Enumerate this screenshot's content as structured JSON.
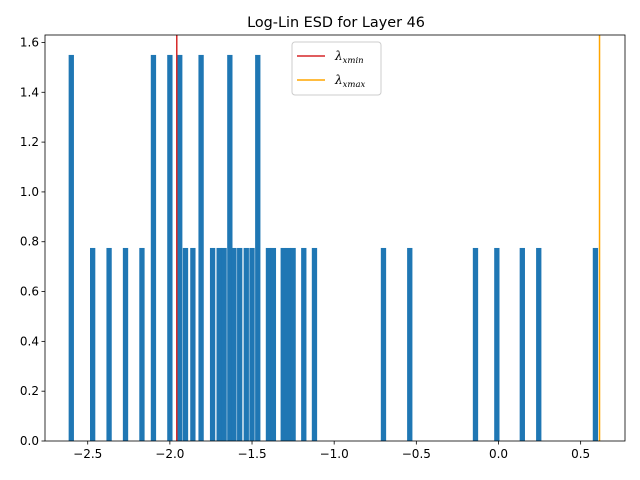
{
  "chart_data": {
    "type": "bar",
    "title": "Log-Lin ESD for Layer 46",
    "xlabel": "",
    "ylabel": "",
    "xlim": [
      -2.76,
      0.77
    ],
    "ylim": [
      0,
      1.63
    ],
    "xticks": [
      -2.5,
      -2.0,
      -1.5,
      -1.0,
      -0.5,
      0.0,
      0.5
    ],
    "xtick_labels": [
      "−2.5",
      "−2.0",
      "−1.5",
      "−1.0",
      "−0.5",
      "0.0",
      "0.5"
    ],
    "yticks": [
      0.0,
      0.2,
      0.4,
      0.6,
      0.8,
      1.0,
      1.2,
      1.4,
      1.6
    ],
    "ytick_labels": [
      "0.0",
      "0.2",
      "0.4",
      "0.6",
      "0.8",
      "1.0",
      "1.2",
      "1.4",
      "1.6"
    ],
    "bin_width": 0.0323,
    "bar_color": "#1f77b4",
    "bars": [
      {
        "x": -2.6,
        "height": 1.55
      },
      {
        "x": -2.47,
        "height": 0.775
      },
      {
        "x": -2.37,
        "height": 0.775
      },
      {
        "x": -2.27,
        "height": 0.775
      },
      {
        "x": -2.17,
        "height": 0.775
      },
      {
        "x": -2.1,
        "height": 1.55
      },
      {
        "x": -2.0,
        "height": 1.55
      },
      {
        "x": -1.94,
        "height": 1.55
      },
      {
        "x": -1.905,
        "height": 0.775
      },
      {
        "x": -1.86,
        "height": 0.775
      },
      {
        "x": -1.81,
        "height": 1.55
      },
      {
        "x": -1.74,
        "height": 0.775
      },
      {
        "x": -1.7,
        "height": 0.775
      },
      {
        "x": -1.67,
        "height": 0.775
      },
      {
        "x": -1.635,
        "height": 1.55
      },
      {
        "x": -1.61,
        "height": 0.775
      },
      {
        "x": -1.575,
        "height": 0.775
      },
      {
        "x": -1.535,
        "height": 0.775
      },
      {
        "x": -1.5,
        "height": 0.775
      },
      {
        "x": -1.465,
        "height": 1.55
      },
      {
        "x": -1.4,
        "height": 0.775
      },
      {
        "x": -1.37,
        "height": 0.775
      },
      {
        "x": -1.31,
        "height": 0.775
      },
      {
        "x": -1.28,
        "height": 0.775
      },
      {
        "x": -1.25,
        "height": 0.775
      },
      {
        "x": -1.185,
        "height": 0.775
      },
      {
        "x": -1.12,
        "height": 0.775
      },
      {
        "x": -0.7,
        "height": 0.775
      },
      {
        "x": -0.54,
        "height": 0.775
      },
      {
        "x": -0.14,
        "height": 0.775
      },
      {
        "x": -0.01,
        "height": 0.775
      },
      {
        "x": 0.145,
        "height": 0.775
      },
      {
        "x": 0.245,
        "height": 0.775
      },
      {
        "x": 0.59,
        "height": 0.775
      }
    ],
    "vlines": [
      {
        "x": -1.958,
        "color": "#d62728",
        "label": "λ",
        "subscript": "xmin"
      },
      {
        "x": 0.615,
        "color": "#ffa500",
        "label": "λ",
        "subscript": "xmax"
      }
    ],
    "legend_position": "top-center"
  }
}
